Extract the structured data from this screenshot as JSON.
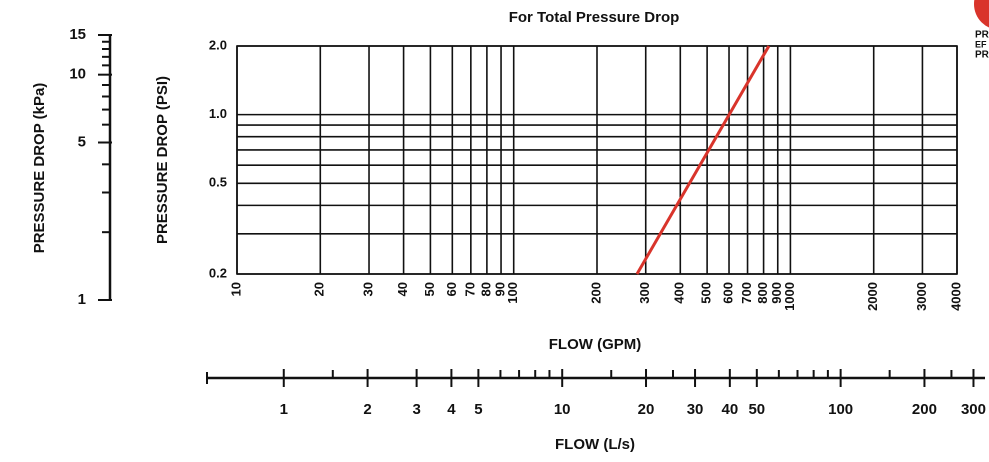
{
  "chart_data": {
    "type": "line",
    "title": "For Total Pressure Drop",
    "x_label": "FLOW (GPM)",
    "y_label": "PRESSURE DROP (PSI)",
    "xlog": true,
    "ylog": true,
    "grid": true,
    "xlim": [
      10,
      4000
    ],
    "xticks": [
      10,
      20,
      30,
      40,
      50,
      60,
      70,
      80,
      90,
      100,
      200,
      300,
      400,
      500,
      600,
      700,
      800,
      900,
      1000,
      2000,
      3000,
      4000
    ],
    "ylim": [
      0.2,
      2.0
    ],
    "yticks": [
      0.2,
      0.5,
      {
        "value": 1,
        "label": "1.0"
      },
      {
        "value": 2,
        "label": "2.0"
      }
    ],
    "y_grid": [
      0.3,
      0.4,
      0.6,
      0.7,
      0.8,
      0.9
    ],
    "series": [
      {
        "color": "#d9342b",
        "x": [
          279,
          836
        ],
        "values": [
          0.2,
          2.0
        ]
      }
    ],
    "kpa_axis": {
      "label": "PRESSURE DROP (kPa)",
      "ylim": [
        1,
        15
      ],
      "yticks": [
        1,
        5,
        10,
        15
      ],
      "minor_ticks": [
        2,
        3,
        4,
        6,
        7,
        8,
        9,
        11,
        12,
        13,
        14
      ]
    },
    "lps_axis": {
      "label": "FLOW (L/s)",
      "xlim": [
        0.53,
        330
      ],
      "xticks": [
        1,
        2,
        3,
        4,
        5,
        10,
        20,
        30,
        40,
        50,
        100,
        200,
        300
      ],
      "minor_ticks": [
        1.5,
        6,
        7,
        8,
        9,
        15,
        25,
        60,
        70,
        80,
        90,
        150,
        250
      ]
    },
    "side_text": [
      "PR",
      "EF",
      "PR"
    ]
  }
}
